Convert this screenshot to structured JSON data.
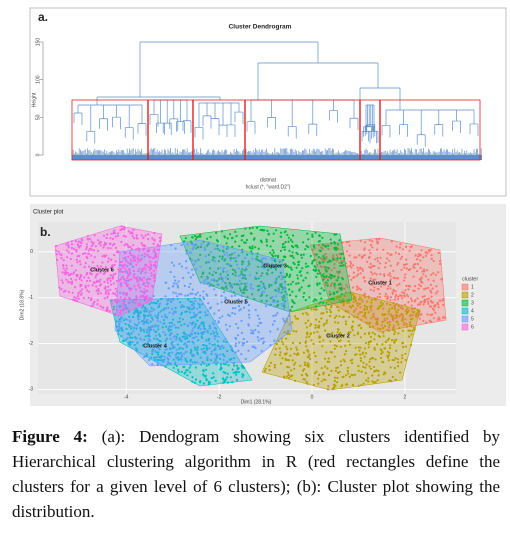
{
  "chart_data": [
    {
      "type": "dendrogram",
      "panel": "a.",
      "title": "Cluster Dendrogram",
      "ylabel": "Height",
      "xlabel": "distmat",
      "subtitle": "hclust (*, \"ward.D2\")",
      "ylim": [
        0,
        150
      ],
      "yticks": [
        0,
        50,
        100,
        150
      ]
    },
    {
      "type": "scatter",
      "heading": "Cluster plot",
      "panel": "b.",
      "xlabel": "Dim1 (28.1%)",
      "ylabel": "Dim2 (18.8%)",
      "xlim": [
        -5.9,
        3.1
      ],
      "xticks": [
        -4,
        -2,
        0,
        2
      ],
      "ylim": [
        -3.1,
        0.65
      ],
      "yticks": [
        0,
        -1,
        -2,
        -3
      ],
      "legend_title": "cluster",
      "series": [
        {
          "name": "1",
          "label": "Cluster 1",
          "color": "#f8766d"
        },
        {
          "name": "2",
          "label": "Cluster 2",
          "color": "#b79f00"
        },
        {
          "name": "3",
          "label": "Cluster 3",
          "color": "#00ba38"
        },
        {
          "name": "4",
          "label": "Cluster 4",
          "color": "#00bfc4"
        },
        {
          "name": "5",
          "label": "Cluster 5",
          "color": "#619cff"
        },
        {
          "name": "6",
          "label": "Cluster 6",
          "color": "#f564e3"
        }
      ]
    }
  ],
  "caption": {
    "label": "Figure 4:",
    "text": " (a): Dendogram showing six clusters identified by Hierarchical clustering algorithm in R (red rectangles define the clusters for a given level of 6 clusters); (b): Cluster plot showing the distribution."
  }
}
